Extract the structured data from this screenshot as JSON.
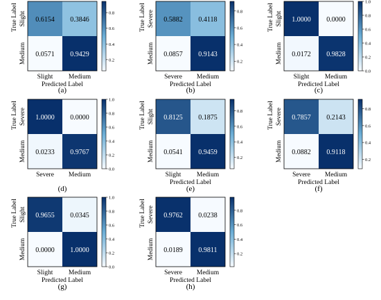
{
  "figure": {
    "panels": [
      {
        "caption": "(a)",
        "x_categories": [
          "Slight",
          "Medium"
        ],
        "y_categories": [
          "Slight",
          "Medium"
        ]
      },
      {
        "caption": "(b)",
        "x_categories": [
          "Severe",
          "Medium"
        ],
        "y_categories": [
          "Severe",
          "Medium"
        ]
      },
      {
        "caption": "(c)",
        "x_categories": [
          "Slight",
          "Medium"
        ],
        "y_categories": [
          "Slight",
          "Medium"
        ]
      },
      {
        "caption": "(d)",
        "x_categories": [
          "Severe",
          "Medium"
        ],
        "y_categories": [
          "Severe",
          "Medium"
        ]
      },
      {
        "caption": "(e)",
        "x_categories": [
          "Slight",
          "Medium"
        ],
        "y_categories": [
          "Slight",
          "Medium"
        ]
      },
      {
        "caption": "(f)",
        "x_categories": [
          "Severe",
          "Medium"
        ],
        "y_categories": [
          "Severe",
          "Medium"
        ]
      },
      {
        "caption": "(g)",
        "x_categories": [
          "Slight",
          "Medium"
        ],
        "y_categories": [
          "Slight",
          "Medium"
        ]
      },
      {
        "caption": "(h)",
        "x_categories": [
          "Severe",
          "Medium"
        ],
        "y_categories": [
          "Severe",
          "Medium"
        ]
      }
    ]
  },
  "colors": {
    "low": "#f7fbff",
    "mid": "#6baed6",
    "high": "#08306b"
  },
  "chart_data": [
    {
      "type": "heatmap",
      "title": "(a)",
      "xlabel": "Predicted Label",
      "ylabel": "True Label",
      "x_categories": [
        "Slight",
        "Medium"
      ],
      "y_categories": [
        "Slight",
        "Medium"
      ],
      "values": [
        [
          0.6154,
          0.3846
        ],
        [
          0.0571,
          0.9429
        ]
      ],
      "value_labels": [
        [
          "0.6154",
          "0.3846"
        ],
        [
          "0.0571",
          "0.9429"
        ]
      ],
      "colorbar": {
        "range": [
          0.0571,
          0.9429
        ],
        "ticks": [
          0.2,
          0.4,
          0.6,
          0.8
        ],
        "tick_labels": [
          "0.2",
          "0.4",
          "0.6",
          "0.8"
        ]
      }
    },
    {
      "type": "heatmap",
      "title": "(b)",
      "xlabel": "Predicted Label",
      "ylabel": "True Label",
      "x_categories": [
        "Severe",
        "Medium"
      ],
      "y_categories": [
        "Severe",
        "Medium"
      ],
      "values": [
        [
          0.5882,
          0.4118
        ],
        [
          0.0857,
          0.9143
        ]
      ],
      "value_labels": [
        [
          "0.5882",
          "0.4118"
        ],
        [
          "0.0857",
          "0.9143"
        ]
      ],
      "colorbar": {
        "range": [
          0.0857,
          0.9143
        ],
        "ticks": [
          0.2,
          0.4,
          0.6,
          0.8
        ],
        "tick_labels": [
          "0.2",
          "0.4",
          "0.6",
          "0.8"
        ]
      }
    },
    {
      "type": "heatmap",
      "title": "(c)",
      "xlabel": "Predicted Label",
      "ylabel": "True Label",
      "x_categories": [
        "Slight",
        "Medium"
      ],
      "y_categories": [
        "Slight",
        "Medium"
      ],
      "values": [
        [
          1.0,
          0.0
        ],
        [
          0.0172,
          0.9828
        ]
      ],
      "value_labels": [
        [
          "1.0000",
          "0.0000"
        ],
        [
          "0.0172",
          "0.9828"
        ]
      ],
      "colorbar": {
        "range": [
          0.0,
          1.0
        ],
        "ticks": [
          0.0,
          0.2,
          0.4,
          0.6,
          0.8,
          1.0
        ],
        "tick_labels": [
          "0.0",
          "0.2",
          "0.4",
          "0.6",
          "0.8",
          "1.0"
        ]
      }
    },
    {
      "type": "heatmap",
      "title": "(d)",
      "xlabel": "",
      "ylabel": "True Label",
      "x_categories": [
        "Severe",
        "Medium"
      ],
      "y_categories": [
        "Severe",
        "Medium"
      ],
      "values": [
        [
          1.0,
          0.0
        ],
        [
          0.0233,
          0.9767
        ]
      ],
      "value_labels": [
        [
          "1.0000",
          "0.0000"
        ],
        [
          "0.0233",
          "0.9767"
        ]
      ],
      "colorbar": {
        "range": [
          0.0,
          1.0
        ],
        "ticks": [
          0.0,
          0.2,
          0.4,
          0.6,
          0.8,
          1.0
        ],
        "tick_labels": [
          "0.0",
          "0.2",
          "0.4",
          "0.6",
          "0.8",
          "1.0"
        ]
      }
    },
    {
      "type": "heatmap",
      "title": "(e)",
      "xlabel": "Predicted Label",
      "ylabel": "True Label",
      "x_categories": [
        "Slight",
        "Medium"
      ],
      "y_categories": [
        "Slight",
        "Medium"
      ],
      "values": [
        [
          0.8125,
          0.1875
        ],
        [
          0.0541,
          0.9459
        ]
      ],
      "value_labels": [
        [
          "0.8125",
          "0.1875"
        ],
        [
          "0.0541",
          "0.9459"
        ]
      ],
      "colorbar": {
        "range": [
          0.0541,
          0.9459
        ],
        "ticks": [
          0.2,
          0.4,
          0.6,
          0.8
        ],
        "tick_labels": [
          "0.2",
          "0.4",
          "0.6",
          "0.8"
        ]
      }
    },
    {
      "type": "heatmap",
      "title": "(f)",
      "xlabel": "Predicted Label",
      "ylabel": "True Label",
      "x_categories": [
        "Severe",
        "Medium"
      ],
      "y_categories": [
        "Severe",
        "Medium"
      ],
      "values": [
        [
          0.7857,
          0.2143
        ],
        [
          0.0882,
          0.9118
        ]
      ],
      "value_labels": [
        [
          "0.7857",
          "0.2143"
        ],
        [
          "0.0882",
          "0.9118"
        ]
      ],
      "colorbar": {
        "range": [
          0.0882,
          0.9118
        ],
        "ticks": [
          0.2,
          0.4,
          0.6,
          0.8
        ],
        "tick_labels": [
          "0.2",
          "0.4",
          "0.6",
          "0.8"
        ]
      }
    },
    {
      "type": "heatmap",
      "title": "(g)",
      "xlabel": "Predicted Label",
      "ylabel": "True Label",
      "x_categories": [
        "Slight",
        "Medium"
      ],
      "y_categories": [
        "Slight",
        "Medium"
      ],
      "values": [
        [
          0.9655,
          0.0345
        ],
        [
          0.0,
          1.0
        ]
      ],
      "value_labels": [
        [
          "0.9655",
          "0.0345"
        ],
        [
          "0.0000",
          "1.0000"
        ]
      ],
      "colorbar": {
        "range": [
          0.0,
          1.0
        ],
        "ticks": [
          0.0,
          0.2,
          0.4,
          0.6,
          0.8,
          1.0
        ],
        "tick_labels": [
          "0.0",
          "0.2",
          "0.4",
          "0.6",
          "0.8",
          "1.0"
        ]
      }
    },
    {
      "type": "heatmap",
      "title": "(h)",
      "xlabel": "Predicted Label",
      "ylabel": "True Label",
      "x_categories": [
        "Severe",
        "Medium"
      ],
      "y_categories": [
        "Severe",
        "Medium"
      ],
      "values": [
        [
          0.9762,
          0.0238
        ],
        [
          0.0189,
          0.9811
        ]
      ],
      "value_labels": [
        [
          "0.9762",
          "0.0238"
        ],
        [
          "0.0189",
          "0.9811"
        ]
      ],
      "colorbar": {
        "range": [
          0.0189,
          0.9811
        ],
        "ticks": [
          0.2,
          0.4,
          0.6,
          0.8
        ],
        "tick_labels": [
          "0.2",
          "0.4",
          "0.6",
          "0.8"
        ]
      }
    }
  ]
}
